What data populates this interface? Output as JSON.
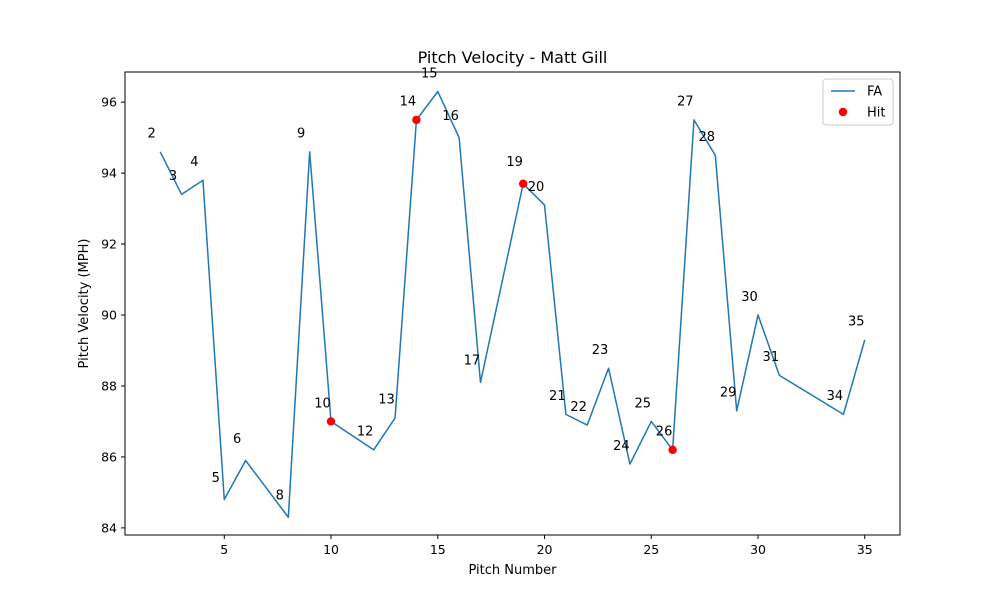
{
  "chart_data": {
    "type": "line",
    "title": "Pitch Velocity - Matt Gill",
    "xlabel": "Pitch Number",
    "ylabel": "Pitch Velocity (MPH)",
    "xlim": [
      0.35,
      36.65
    ],
    "ylim": [
      83.8,
      96.85
    ],
    "xticks": [
      5,
      10,
      15,
      20,
      25,
      30,
      35
    ],
    "yticks": [
      84,
      86,
      88,
      90,
      92,
      94,
      96
    ],
    "grid": false,
    "legend": {
      "placement": "top-right"
    },
    "series": [
      {
        "name": "FA",
        "kind": "line",
        "color": "#1f77b4",
        "x": [
          2,
          3,
          4,
          5,
          6,
          8,
          9,
          10,
          12,
          13,
          14,
          15,
          16,
          17,
          19,
          20,
          21,
          22,
          23,
          24,
          25,
          26,
          27,
          28,
          29,
          30,
          31,
          34,
          35
        ],
        "y": [
          94.6,
          93.4,
          93.8,
          84.8,
          85.9,
          84.3,
          94.6,
          87.0,
          86.2,
          87.1,
          95.5,
          96.3,
          95.0,
          88.1,
          93.7,
          93.1,
          87.2,
          86.9,
          88.5,
          85.8,
          87.0,
          86.2,
          95.5,
          94.5,
          87.3,
          90.0,
          88.3,
          87.2,
          89.3
        ]
      },
      {
        "name": "Hit",
        "kind": "scatter",
        "color": "#ff0000",
        "x": [
          10,
          14,
          19,
          26
        ],
        "y": [
          87.0,
          95.5,
          93.7,
          86.2
        ]
      }
    ],
    "annotations": [
      {
        "text": "2",
        "x": 1.6,
        "y": 95.0
      },
      {
        "text": "3",
        "x": 2.6,
        "y": 93.8
      },
      {
        "text": "4",
        "x": 3.6,
        "y": 94.2
      },
      {
        "text": "5",
        "x": 4.6,
        "y": 85.3
      },
      {
        "text": "6",
        "x": 5.6,
        "y": 86.4
      },
      {
        "text": "8",
        "x": 7.6,
        "y": 84.8
      },
      {
        "text": "9",
        "x": 8.6,
        "y": 95.0
      },
      {
        "text": "10",
        "x": 9.6,
        "y": 87.4
      },
      {
        "text": "12",
        "x": 11.6,
        "y": 86.6
      },
      {
        "text": "13",
        "x": 12.6,
        "y": 87.5
      },
      {
        "text": "14",
        "x": 13.6,
        "y": 95.9
      },
      {
        "text": "15",
        "x": 14.6,
        "y": 96.7
      },
      {
        "text": "16",
        "x": 15.6,
        "y": 95.5
      },
      {
        "text": "17",
        "x": 16.6,
        "y": 88.6
      },
      {
        "text": "19",
        "x": 18.6,
        "y": 94.2
      },
      {
        "text": "20",
        "x": 19.6,
        "y": 93.5
      },
      {
        "text": "21",
        "x": 20.6,
        "y": 87.6
      },
      {
        "text": "22",
        "x": 21.6,
        "y": 87.3
      },
      {
        "text": "23",
        "x": 22.6,
        "y": 88.9
      },
      {
        "text": "24",
        "x": 23.6,
        "y": 86.2
      },
      {
        "text": "25",
        "x": 24.6,
        "y": 87.4
      },
      {
        "text": "26",
        "x": 25.6,
        "y": 86.6
      },
      {
        "text": "27",
        "x": 26.6,
        "y": 95.9
      },
      {
        "text": "28",
        "x": 27.6,
        "y": 94.9
      },
      {
        "text": "29",
        "x": 28.6,
        "y": 87.7
      },
      {
        "text": "30",
        "x": 29.6,
        "y": 90.4
      },
      {
        "text": "31",
        "x": 30.6,
        "y": 88.7
      },
      {
        "text": "34",
        "x": 33.6,
        "y": 87.6
      },
      {
        "text": "35",
        "x": 34.6,
        "y": 89.7
      }
    ]
  }
}
